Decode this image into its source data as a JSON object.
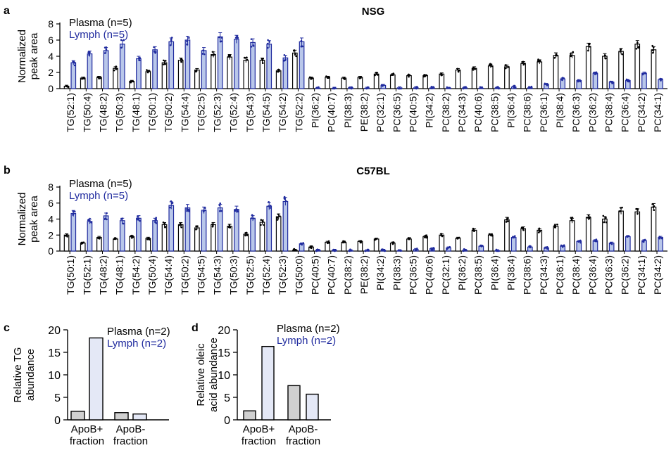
{
  "colors": {
    "plasma": "#000000",
    "lymph": "#1f2a9e",
    "plasma_fill": "#ffffff",
    "lymph_fill": "#b9c7ea",
    "bar_c_plasma": "#d0d0d0",
    "bar_c_lymph": "#e4e8f6"
  },
  "chart_data": [
    {
      "panel": "a",
      "type": "bar",
      "title": "NSG",
      "ylabel": [
        "Normalized",
        "peak area"
      ],
      "ylim": [
        0,
        8
      ],
      "yticks": [
        0,
        2,
        4,
        6,
        8
      ],
      "legend": [
        "Plasma (n=5)",
        "Lymph (n=5)"
      ],
      "categories": [
        "TG(52:1)",
        "TG(50:4)",
        "TG(48:2)",
        "TG(50:3)",
        "TG(48:1)",
        "TG(50:1)",
        "TG(50:2)",
        "TG(54:4)",
        "TG(52:5)",
        "TG(52:3)",
        "TG(52:4)",
        "TG(54:3)",
        "TG(54:5)",
        "TG(54:2)",
        "TG(52:2)",
        "PI(36:2)",
        "PC(40:7)",
        "PI(38:3)",
        "PE(38:2)",
        "PC(32:1)",
        "PC(36:5)",
        "PC(40:5)",
        "PI(34:2)",
        "PC(38:2)",
        "PC(34:3)",
        "PC(40:6)",
        "PC(38:5)",
        "PI(36:4)",
        "PC(38:6)",
        "PC(36:1)",
        "PI(38:4)",
        "PC(36:3)",
        "PC(36:2)",
        "PC(38:4)",
        "PC(36:4)",
        "PC(34:2)",
        "PC(34:1)"
      ],
      "series": [
        {
          "name": "Plasma",
          "values": [
            0.3,
            1.3,
            1.4,
            2.5,
            0.9,
            2.1,
            3.2,
            3.5,
            2.3,
            4.2,
            3.9,
            3.5,
            3.5,
            2.2,
            4.4,
            1.3,
            1.4,
            1.3,
            1.4,
            1.8,
            1.7,
            1.6,
            1.6,
            1.8,
            2.3,
            2.5,
            2.8,
            2.7,
            3.1,
            3.3,
            4.1,
            4.1,
            5.2,
            4.0,
            4.6,
            5.5,
            4.8
          ]
        },
        {
          "name": "Lymph",
          "values": [
            3.2,
            4.3,
            4.7,
            5.5,
            3.7,
            4.8,
            5.8,
            6.0,
            4.7,
            6.4,
            6.1,
            5.7,
            5.5,
            3.8,
            5.8,
            0.05,
            0.05,
            0.1,
            0.05,
            0.4,
            0.1,
            0.1,
            0.1,
            0.05,
            0.1,
            0.05,
            0.1,
            0.2,
            0.1,
            0.5,
            1.2,
            1.0,
            1.9,
            0.8,
            1.0,
            1.9,
            1.1
          ]
        }
      ]
    },
    {
      "panel": "b",
      "type": "bar",
      "title": "C57BL",
      "ylabel": [
        "Normalized",
        "peak area"
      ],
      "ylim": [
        0,
        8
      ],
      "yticks": [
        0,
        2,
        4,
        6,
        8
      ],
      "legend": [
        "Plasma (n=5)",
        "Lymph (n=5)"
      ],
      "categories": [
        "TG(50:1)",
        "TG(52:1)",
        "TG(48:2)",
        "TG(48:1)",
        "TG(54:2)",
        "TG(50:4)",
        "TG(54:4)",
        "TG(50:2)",
        "TG(54:5)",
        "TG(54:3)",
        "TG(50:3)",
        "TG(52:5)",
        "TG(52:4)",
        "TG(52:3)",
        "TG(50:0)",
        "PC(40:5)",
        "PC(40:7)",
        "PC(38:2)",
        "PE(38:2)",
        "PI(34:2)",
        "PI(38:3)",
        "PC(36:5)",
        "PC(40:6)",
        "PC(32:1)",
        "PI(36:2)",
        "PC(38:5)",
        "PI(36:4)",
        "PI(38:4)",
        "PC(38:6)",
        "PC(34:3)",
        "PC(36:1)",
        "PC(38:4)",
        "PC(36:4)",
        "PC(36:3)",
        "PC(36:2)",
        "PC(34:1)",
        "PC(34:2)"
      ],
      "series": [
        {
          "name": "Plasma",
          "values": [
            2.0,
            1.0,
            1.7,
            1.5,
            1.8,
            1.6,
            3.3,
            3.3,
            2.9,
            3.3,
            3.1,
            2.1,
            3.6,
            4.3,
            0.1,
            0.5,
            1.1,
            1.1,
            1.2,
            1.5,
            1.0,
            1.5,
            1.8,
            2.0,
            1.6,
            2.6,
            2.0,
            3.9,
            2.8,
            2.6,
            3.1,
            3.8,
            4.2,
            4.0,
            5.0,
            4.9,
            5.5
          ]
        },
        {
          "name": "Lymph",
          "values": [
            4.7,
            3.7,
            4.4,
            3.8,
            4.1,
            3.8,
            5.7,
            5.4,
            5.1,
            5.4,
            5.2,
            4.1,
            5.6,
            6.2,
            0.9,
            0.1,
            0.1,
            0.05,
            0.05,
            0.1,
            0.05,
            0.2,
            0.3,
            0.4,
            0.1,
            0.6,
            0.05,
            1.7,
            0.5,
            0.4,
            0.6,
            1.2,
            1.3,
            1.0,
            1.8,
            1.3,
            1.7
          ]
        }
      ]
    },
    {
      "panel": "c",
      "type": "bar",
      "ylabel": [
        "Relative TG",
        "abundance"
      ],
      "ylim": [
        0,
        20
      ],
      "yticks": [
        0,
        5,
        10,
        15,
        20
      ],
      "legend": [
        "Plasma (n=2)",
        "Lymph (n=2)"
      ],
      "categories": [
        [
          "ApoB+",
          "fraction"
        ],
        [
          "ApoB-",
          "fraction"
        ]
      ],
      "series": [
        {
          "name": "Plasma",
          "values": [
            1.9,
            1.6
          ]
        },
        {
          "name": "Lymph",
          "values": [
            18.2,
            1.3
          ]
        }
      ]
    },
    {
      "panel": "d",
      "type": "bar",
      "ylabel": [
        "Relative oleic",
        "acid abundance"
      ],
      "ylim": [
        0,
        20
      ],
      "yticks": [
        0,
        5,
        10,
        15,
        20
      ],
      "legend": [
        "Plasma (n=2)",
        "Lymph (n=2)"
      ],
      "categories": [
        [
          "ApoB+",
          "fraction"
        ],
        [
          "ApoB-",
          "fraction"
        ]
      ],
      "series": [
        {
          "name": "Plasma",
          "values": [
            2.0,
            7.6
          ]
        },
        {
          "name": "Lymph",
          "values": [
            16.3,
            5.7
          ]
        }
      ]
    }
  ]
}
